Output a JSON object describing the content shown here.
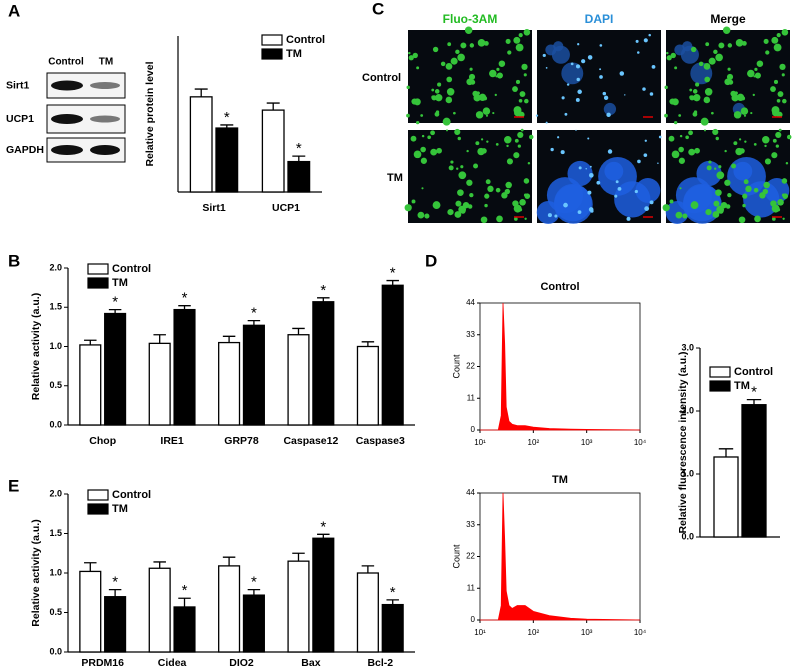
{
  "panel_labels": [
    "A",
    "B",
    "C",
    "D",
    "E"
  ],
  "blot": {
    "lanes": [
      "Control",
      "TM"
    ],
    "proteins": [
      "Sirt1",
      "UCP1",
      "GAPDH"
    ]
  },
  "images": {
    "stains": [
      "Fluo-3AM",
      "DAPI",
      "Merge"
    ],
    "stain_colors": [
      "#22bb22",
      "#2a8fd8",
      "#000000"
    ],
    "conditions": [
      "Control",
      "TM"
    ]
  },
  "chart_data": [
    {
      "type": "bar",
      "ylabel": "Relative protein level",
      "categories": [
        "Sirt1",
        "UCP1"
      ],
      "ylim": [
        0,
        2
      ],
      "series": [
        {
          "name": "Control",
          "color": "#ffffff",
          "values": [
            1.22,
            1.05
          ],
          "errors": [
            0.1,
            0.09
          ]
        },
        {
          "name": "TM",
          "color": "#000000",
          "values": [
            0.82,
            0.39
          ],
          "errors": [
            0.04,
            0.07
          ],
          "significance": [
            "*",
            "*"
          ]
        }
      ]
    },
    {
      "type": "bar",
      "ylabel": "Relative activity (a.u.)",
      "categories": [
        "Chop",
        "IRE1",
        "GRP78",
        "Caspase12",
        "Caspase3"
      ],
      "ylim": [
        0,
        2
      ],
      "yticks": [
        {
          "value": 0,
          "label": "0.0"
        },
        0.5,
        {
          "value": 1,
          "label": "1.0"
        },
        1.5,
        {
          "value": 2,
          "label": "2.0"
        }
      ],
      "series": [
        {
          "name": "Control",
          "color": "#ffffff",
          "values": [
            1.02,
            1.04,
            1.05,
            1.15,
            1.0
          ],
          "errors": [
            0.06,
            0.11,
            0.08,
            0.08,
            0.06
          ]
        },
        {
          "name": "TM",
          "color": "#000000",
          "values": [
            1.42,
            1.47,
            1.27,
            1.57,
            1.78
          ],
          "errors": [
            0.05,
            0.05,
            0.06,
            0.05,
            0.06
          ],
          "significance": [
            "*",
            "*",
            "*",
            "*",
            "*"
          ]
        }
      ]
    },
    {
      "type": "bar",
      "ylabel": "Relative activity (a.u.)",
      "categories": [
        "PRDM16",
        "Cidea",
        "DIO2",
        "Bax",
        "Bcl-2"
      ],
      "ylim": [
        0,
        2
      ],
      "yticks": [
        {
          "value": 0,
          "label": "0.0"
        },
        0.5,
        {
          "value": 1,
          "label": "1.0"
        },
        1.5,
        {
          "value": 2,
          "label": "2.0"
        }
      ],
      "series": [
        {
          "name": "Control",
          "color": "#ffffff",
          "values": [
            1.02,
            1.06,
            1.09,
            1.15,
            1.0
          ],
          "errors": [
            0.11,
            0.08,
            0.11,
            0.1,
            0.09
          ]
        },
        {
          "name": "TM",
          "color": "#000000",
          "values": [
            0.7,
            0.57,
            0.72,
            1.44,
            0.6
          ],
          "errors": [
            0.09,
            0.11,
            0.07,
            0.05,
            0.06
          ],
          "significance": [
            "*",
            "*",
            "*",
            "*",
            "*"
          ]
        }
      ]
    },
    {
      "type": "area",
      "title": "Control",
      "ylabel": "Count",
      "xlog": true,
      "color": "#ff0000",
      "x": [
        10,
        22,
        25,
        27,
        29,
        31,
        35,
        40,
        50,
        70,
        100,
        200,
        500,
        1000,
        10000
      ],
      "values": [
        0,
        0,
        5,
        44,
        30,
        8,
        3,
        2,
        1.5,
        1.5,
        1,
        0.5,
        0.3,
        0.2,
        0
      ],
      "xlim": [
        10,
        10000
      ],
      "ylim": [
        0,
        44
      ],
      "xticks": [
        {
          "value": 10,
          "label": "10¹"
        },
        {
          "value": 100,
          "label": "10²"
        },
        {
          "value": 1000,
          "label": "10³"
        },
        {
          "value": 10000,
          "label": "10⁴"
        }
      ],
      "yticks": [
        0,
        11,
        22,
        33,
        44
      ]
    },
    {
      "type": "area",
      "title": "TM",
      "ylabel": "Count",
      "xlog": true,
      "color": "#ff0000",
      "x": [
        10,
        22,
        25,
        27,
        29,
        31,
        35,
        40,
        50,
        70,
        100,
        200,
        500,
        1000,
        10000
      ],
      "values": [
        0,
        0,
        5,
        44,
        28,
        10,
        5,
        4,
        5,
        5,
        3,
        1.5,
        0.6,
        0.3,
        0
      ],
      "xlim": [
        10,
        10000
      ],
      "ylim": [
        0,
        44
      ],
      "xticks": [
        {
          "value": 10,
          "label": "10¹"
        },
        {
          "value": 100,
          "label": "10²"
        },
        {
          "value": 1000,
          "label": "10³"
        },
        {
          "value": 10000,
          "label": "10⁴"
        }
      ],
      "yticks": [
        0,
        11,
        22,
        33,
        44
      ]
    },
    {
      "type": "bar",
      "ylabel": "Relative fluorescence intensity (a.u.)",
      "categories": [
        null
      ],
      "ylim": [
        0,
        3
      ],
      "yticks": [
        {
          "value": 0,
          "label": "0.0"
        },
        {
          "value": 1,
          "label": "1.0"
        },
        {
          "value": 2,
          "label": "2.0"
        },
        {
          "value": 3,
          "label": "3.0"
        }
      ],
      "series": [
        {
          "name": "Control",
          "color": "#ffffff",
          "values": [
            1.27
          ],
          "errors": [
            0.13
          ]
        },
        {
          "name": "TM",
          "color": "#000000",
          "values": [
            2.1
          ],
          "errors": [
            0.08
          ],
          "significance": [
            "*"
          ]
        }
      ]
    }
  ]
}
